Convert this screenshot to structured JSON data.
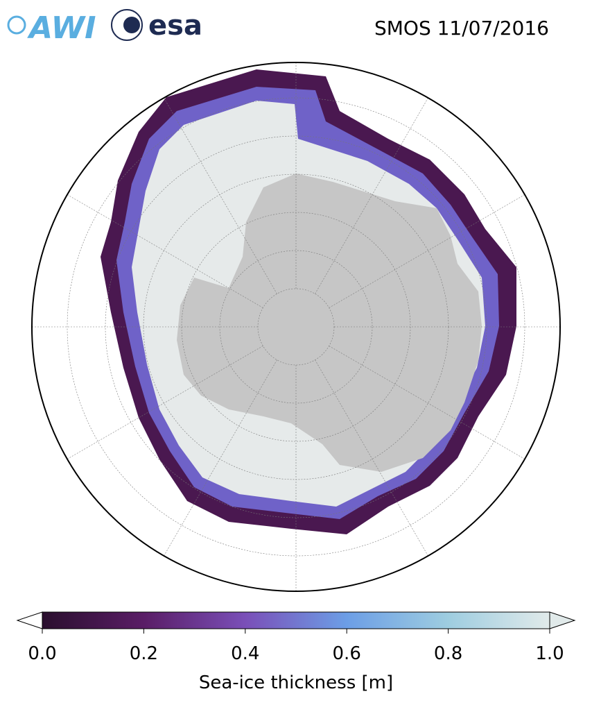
{
  "header": {
    "logos": [
      "AWI",
      "esa"
    ],
    "title": "SMOS 11/07/2016"
  },
  "colorbar": {
    "label": "Sea-ice thickness [m]",
    "lim": [
      0,
      1
    ],
    "ticks": [
      {
        "value": 0,
        "label": "0.0"
      },
      {
        "value": 0.2,
        "label": "0.2"
      },
      {
        "value": 0.4,
        "label": "0.4"
      },
      {
        "value": 0.6,
        "label": "0.6"
      },
      {
        "value": 0.8,
        "label": "0.8"
      },
      {
        "value": 1,
        "label": "1.0"
      }
    ]
  }
}
